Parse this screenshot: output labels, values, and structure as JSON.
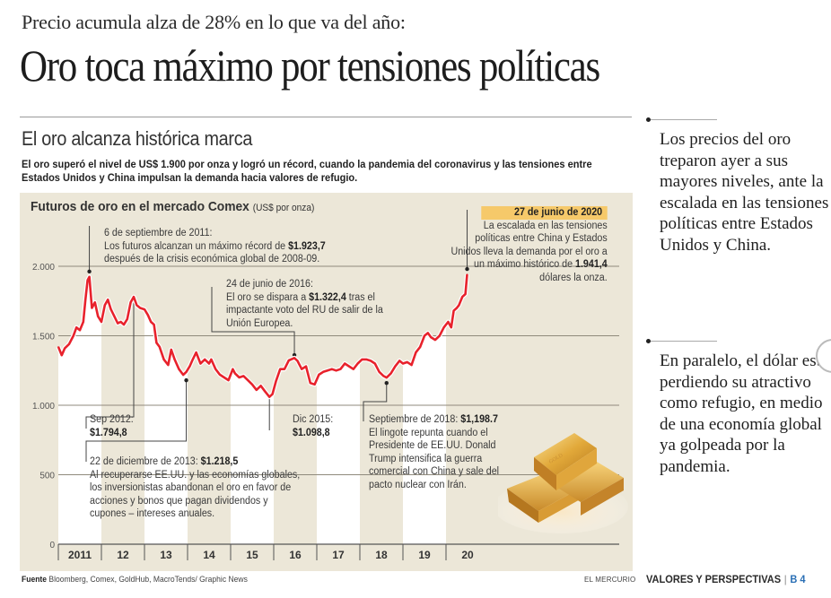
{
  "article": {
    "kicker": "Precio acumula alza de 28% en lo que va del año:",
    "headline": "Oro toca máximo por tensiones políticas",
    "section_title": "El oro alcanza histórica marca",
    "lede": "El oro superó el nivel de US$ 1.900 por onza y logró un récord, cuando la pandemia del coronavirus y las tensiones entre Estados Unidos y China impulsan la demanda hacia valores de refugio.",
    "source_label": "Fuente",
    "source_text": "Bloomberg, Comex, GoldHub, MacroTends/ Graphic News",
    "brand": "EL MERCURIO",
    "section_label": "VALORES Y PERSPECTIVAS",
    "section_sep": "|",
    "page": "B 4"
  },
  "sidebar": {
    "paragraph1": "Los precios del oro treparon ayer a sus mayores niveles, ante la escalada en las tensiones políticas entre Estados Unidos y China.",
    "paragraph2": "En paralelo, el dólar está perdiendo su atractivo como refugio, en medio de una economía global ya golpeada por la pandemia."
  },
  "colors": {
    "line": "#e8222c",
    "panel": "#ece7d8",
    "band": "#ffffff",
    "badge": "#f6c96a",
    "page_accent": "#2a6fb5"
  },
  "chart_data": {
    "type": "line",
    "title": "Futuros de oro en el mercado Comex",
    "unit": "(US$ por onza)",
    "xlabel": "",
    "ylabel": "",
    "ylim": [
      0,
      2000
    ],
    "xlim": [
      2011.0,
      2020.55
    ],
    "grid": true,
    "yticks": [
      0,
      500,
      1000,
      1500,
      2000
    ],
    "ytick_labels": [
      "0",
      "500",
      "1.000",
      "1.500",
      "2.000"
    ],
    "xtick_labels": [
      "2011",
      "12",
      "13",
      "14",
      "15",
      "16",
      "17",
      "18",
      "19",
      "20"
    ],
    "series": [
      {
        "name": "Futuros de oro",
        "x": [
          2011.0,
          2011.08,
          2011.15,
          2011.25,
          2011.35,
          2011.42,
          2011.5,
          2011.58,
          2011.63,
          2011.68,
          2011.72,
          2011.78,
          2011.85,
          2011.92,
          2012.0,
          2012.08,
          2012.15,
          2012.22,
          2012.3,
          2012.38,
          2012.45,
          2012.52,
          2012.6,
          2012.68,
          2012.75,
          2012.82,
          2012.9,
          2013.0,
          2013.08,
          2013.15,
          2013.22,
          2013.28,
          2013.35,
          2013.45,
          2013.55,
          2013.62,
          2013.7,
          2013.8,
          2013.9,
          2013.97,
          2014.05,
          2014.12,
          2014.2,
          2014.3,
          2014.4,
          2014.5,
          2014.55,
          2014.65,
          2014.75,
          2014.85,
          2014.95,
          2015.05,
          2015.1,
          2015.2,
          2015.3,
          2015.4,
          2015.5,
          2015.6,
          2015.7,
          2015.8,
          2015.9,
          2015.97,
          2016.05,
          2016.15,
          2016.25,
          2016.35,
          2016.48,
          2016.55,
          2016.65,
          2016.75,
          2016.85,
          2016.95,
          2017.05,
          2017.15,
          2017.25,
          2017.35,
          2017.45,
          2017.55,
          2017.65,
          2017.75,
          2017.85,
          2017.95,
          2018.05,
          2018.15,
          2018.25,
          2018.35,
          2018.45,
          2018.55,
          2018.62,
          2018.72,
          2018.82,
          2018.92,
          2019.0,
          2019.1,
          2019.2,
          2019.3,
          2019.4,
          2019.5,
          2019.58,
          2019.65,
          2019.75,
          2019.85,
          2019.95,
          2020.05,
          2020.12,
          2020.18,
          2020.25,
          2020.3,
          2020.38,
          2020.45,
          2020.49
        ],
        "y": [
          1420,
          1360,
          1410,
          1440,
          1500,
          1560,
          1540,
          1600,
          1760,
          1900,
          1923.7,
          1700,
          1740,
          1640,
          1600,
          1720,
          1760,
          1690,
          1640,
          1590,
          1600,
          1580,
          1620,
          1740,
          1780,
          1720,
          1700,
          1690,
          1650,
          1600,
          1580,
          1450,
          1420,
          1330,
          1290,
          1400,
          1330,
          1260,
          1218.5,
          1240,
          1280,
          1330,
          1380,
          1300,
          1330,
          1300,
          1330,
          1260,
          1220,
          1200,
          1180,
          1260,
          1230,
          1200,
          1210,
          1180,
          1150,
          1110,
          1140,
          1098.8,
          1060,
          1080,
          1170,
          1260,
          1260,
          1322.4,
          1340,
          1320,
          1260,
          1280,
          1160,
          1150,
          1220,
          1240,
          1250,
          1260,
          1250,
          1260,
          1300,
          1280,
          1260,
          1300,
          1330,
          1330,
          1320,
          1300,
          1240,
          1210,
          1198.7,
          1230,
          1280,
          1320,
          1300,
          1310,
          1290,
          1380,
          1420,
          1500,
          1520,
          1490,
          1470,
          1500,
          1560,
          1600,
          1560,
          1680,
          1700,
          1720,
          1780,
          1800,
          1941.4
        ]
      }
    ],
    "shaded_year_bands": [
      "2011",
      "2013",
      "2015",
      "2017",
      "2019"
    ],
    "annotations": [
      {
        "id": "peak-2011",
        "date": "6 de septiembre de 2011:",
        "text_pre": "Los futuros alcanzan un máximo récord de ",
        "value": "$1.923,7",
        "text_post": "después de la crisis económica global de 2008-09.",
        "x": 2011.72,
        "y": 1923.7
      },
      {
        "id": "sep-2012",
        "date": "Sep 2012:",
        "value": "$1.794,8",
        "x": 2012.75,
        "y": 1794.8
      },
      {
        "id": "dec-2013",
        "date": "22 de diciembre de 2013: ",
        "value": "$1.218,5",
        "text_post": "Al recuperarse EE.UU. y las economías globales, los inversionistas abandonan el oro en favor de acciones y bonos que pagan dividendos y cupones – intereses anuales.",
        "x": 2013.97,
        "y": 1218.5
      },
      {
        "id": "jun-2016",
        "date": "24 de junio de 2016:",
        "text_pre": "El oro se dispara a ",
        "value": "$1.322,4",
        "text_mid": " tras el impactante voto del RU de salir de la Unión Europea.",
        "x": 2016.48,
        "y": 1322.4
      },
      {
        "id": "dec-2015",
        "date": "Dic 2015:",
        "value": "$1.098,8",
        "x": 2015.9,
        "y": 1098.8
      },
      {
        "id": "sep-2018",
        "date": "Septiembre de 2018: ",
        "value": "$1,198.7",
        "text_post": "El lingote repunta cuando el Presidente de EE.UU. Donald Trump intensifica la guerra comercial con China y sale del pacto nuclear con Irán.",
        "x": 2018.62,
        "y": 1198.7
      },
      {
        "id": "jun-2020",
        "date": "27 de junio de 2020",
        "text_pre": "La escalada en las tensiones políticas entre China y Estados Unidos lleva la demanda por el oro a un máximo histórico de ",
        "value": "1.941,4",
        "text_post": "dólares la onza.",
        "x": 2020.49,
        "y": 1941.4
      }
    ]
  }
}
